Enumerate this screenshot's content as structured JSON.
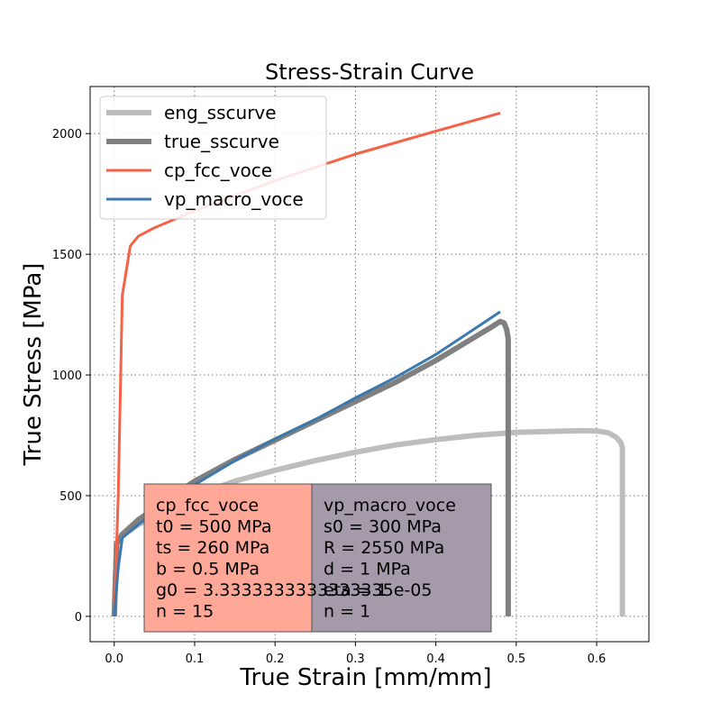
{
  "chart_data": {
    "type": "line",
    "title": "Stress-Strain Curve",
    "xlabel": "True Strain [mm/mm]",
    "ylabel": "True Stress [MPa]",
    "xlim": [
      -0.03,
      0.665
    ],
    "ylim": [
      -105,
      2195
    ],
    "xticks": [
      0.0,
      0.1,
      0.2,
      0.3,
      0.4,
      0.5,
      0.6
    ],
    "xtick_labels": [
      "0.0",
      "0.1",
      "0.2",
      "0.3",
      "0.4",
      "0.5",
      "0.6"
    ],
    "yticks": [
      0,
      500,
      1000,
      1500,
      2000
    ],
    "ytick_labels": [
      "0",
      "500",
      "1000",
      "1500",
      "2000"
    ],
    "grid": true,
    "legend_position": "top-left",
    "series": [
      {
        "name": "eng_sscurve",
        "color": "#bdbdbd",
        "x": [
          0.0,
          0.003,
          0.01,
          0.03,
          0.06,
          0.1,
          0.15,
          0.2,
          0.25,
          0.3,
          0.35,
          0.4,
          0.45,
          0.5,
          0.55,
          0.58,
          0.6,
          0.615,
          0.625,
          0.63,
          0.632,
          0.632,
          0.632,
          0.632,
          0.632
        ],
        "y": [
          0,
          300,
          335,
          380,
          430,
          500,
          560,
          605,
          645,
          680,
          710,
          732,
          750,
          762,
          767,
          769,
          768,
          760,
          740,
          720,
          700,
          500,
          300,
          100,
          0
        ]
      },
      {
        "name": "true_sscurve",
        "color": "#808080",
        "x": [
          0.0,
          0.003,
          0.01,
          0.03,
          0.06,
          0.1,
          0.15,
          0.2,
          0.25,
          0.3,
          0.35,
          0.4,
          0.45,
          0.47,
          0.48,
          0.485,
          0.488,
          0.49,
          0.49,
          0.49,
          0.49,
          0.49
        ],
        "y": [
          0,
          300,
          340,
          400,
          470,
          560,
          650,
          730,
          810,
          890,
          970,
          1060,
          1160,
          1200,
          1222,
          1215,
          1190,
          1150,
          900,
          500,
          200,
          0
        ]
      },
      {
        "name": "cp_fcc_voce",
        "color": "#f4624a",
        "x": [
          0.0,
          0.005,
          0.01,
          0.02,
          0.03,
          0.05,
          0.1,
          0.2,
          0.3,
          0.4,
          0.48
        ],
        "y": [
          0,
          500,
          1330,
          1535,
          1575,
          1610,
          1680,
          1805,
          1915,
          2010,
          2085
        ]
      },
      {
        "name": "vp_macro_voce",
        "color": "#3a78ad",
        "x": [
          0.0,
          0.005,
          0.01,
          0.03,
          0.06,
          0.1,
          0.15,
          0.2,
          0.25,
          0.3,
          0.35,
          0.4,
          0.45,
          0.48
        ],
        "y": [
          0,
          200,
          325,
          380,
          455,
          545,
          645,
          735,
          815,
          905,
          990,
          1085,
          1195,
          1262
        ]
      }
    ],
    "annotations": [
      {
        "box_color": "#ffa898",
        "lines": [
          "cp_fcc_voce",
          "t0 = 500 MPa",
          "ts = 260 MPa",
          "b = 0.5 MPa",
          "g0 = 3.3333333333333335e-05",
          "n = 15"
        ]
      },
      {
        "box_color": "#a59aaa",
        "lines": [
          "vp_macro_voce",
          "s0 = 300 MPa",
          "R = 2550 MPa",
          "d = 1 MPa",
          "eta = 1",
          "n = 1"
        ]
      }
    ]
  }
}
